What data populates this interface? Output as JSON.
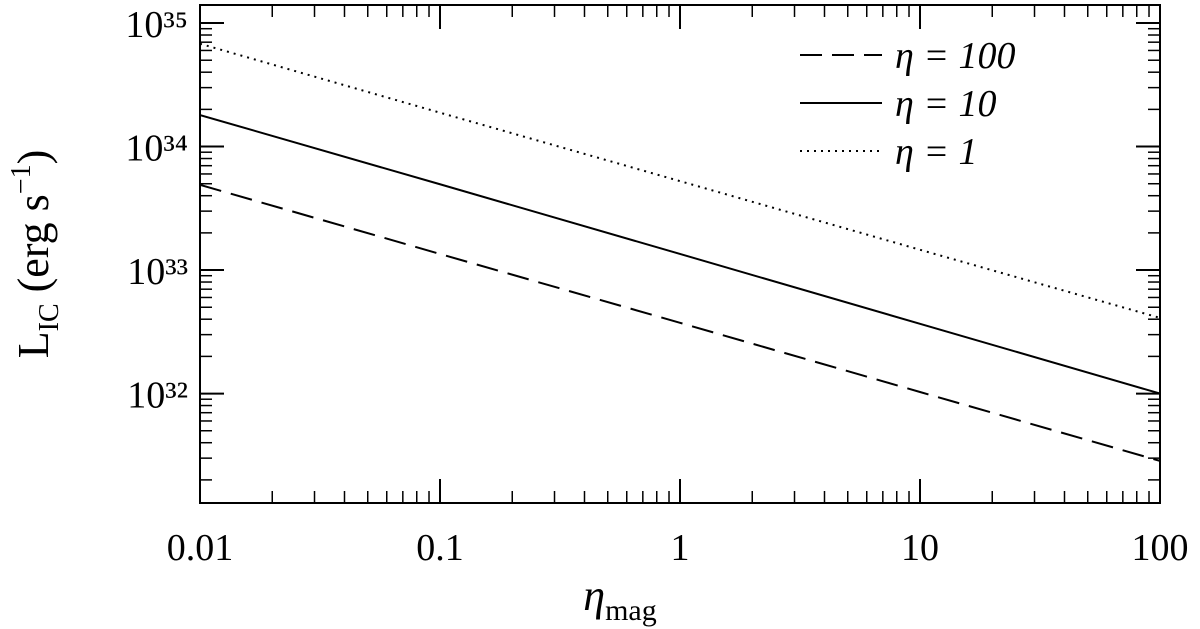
{
  "chart_data": {
    "type": "line",
    "xlabel": [
      "η",
      "mag"
    ],
    "ylabel": [
      "L",
      "IC",
      " (erg s",
      "−1",
      ")"
    ],
    "x": [
      0.01,
      0.1,
      1,
      10,
      100
    ],
    "series": [
      {
        "name": "η = 100",
        "color": "#000000",
        "dash": "dashed",
        "values": [
          4.9e+33,
          1.35e+33,
          3.74e+32,
          1.03e+32,
          2.85e+31
        ]
      },
      {
        "name": "η = 10",
        "color": "#000000",
        "dash": "solid",
        "values": [
          1.8e+34,
          4.95e+33,
          1.35e+33,
          3.67e+32,
          1e+32
        ]
      },
      {
        "name": "η = 1",
        "color": "#000000",
        "dash": "dotted",
        "values": [
          6.8e+34,
          1.88e+34,
          5.25e+33,
          1.46e+33,
          4.1e+32
        ]
      }
    ],
    "xlim": [
      0.01,
      100
    ],
    "ylim": [
      1.3e+31,
      1.4e+35
    ],
    "xticks": [
      0.01,
      0.1,
      1,
      10,
      100
    ],
    "yticks": [
      {
        "value": 1e+32,
        "label": "10³²"
      },
      {
        "value": 1e+33,
        "label": "10³³"
      },
      {
        "value": 1e+34,
        "label": "10³⁴"
      },
      {
        "value": 1e+35,
        "label": "10³⁵"
      }
    ],
    "xscale": "log",
    "yscale": "log",
    "minor_ticks": true,
    "legend": "upper right"
  }
}
